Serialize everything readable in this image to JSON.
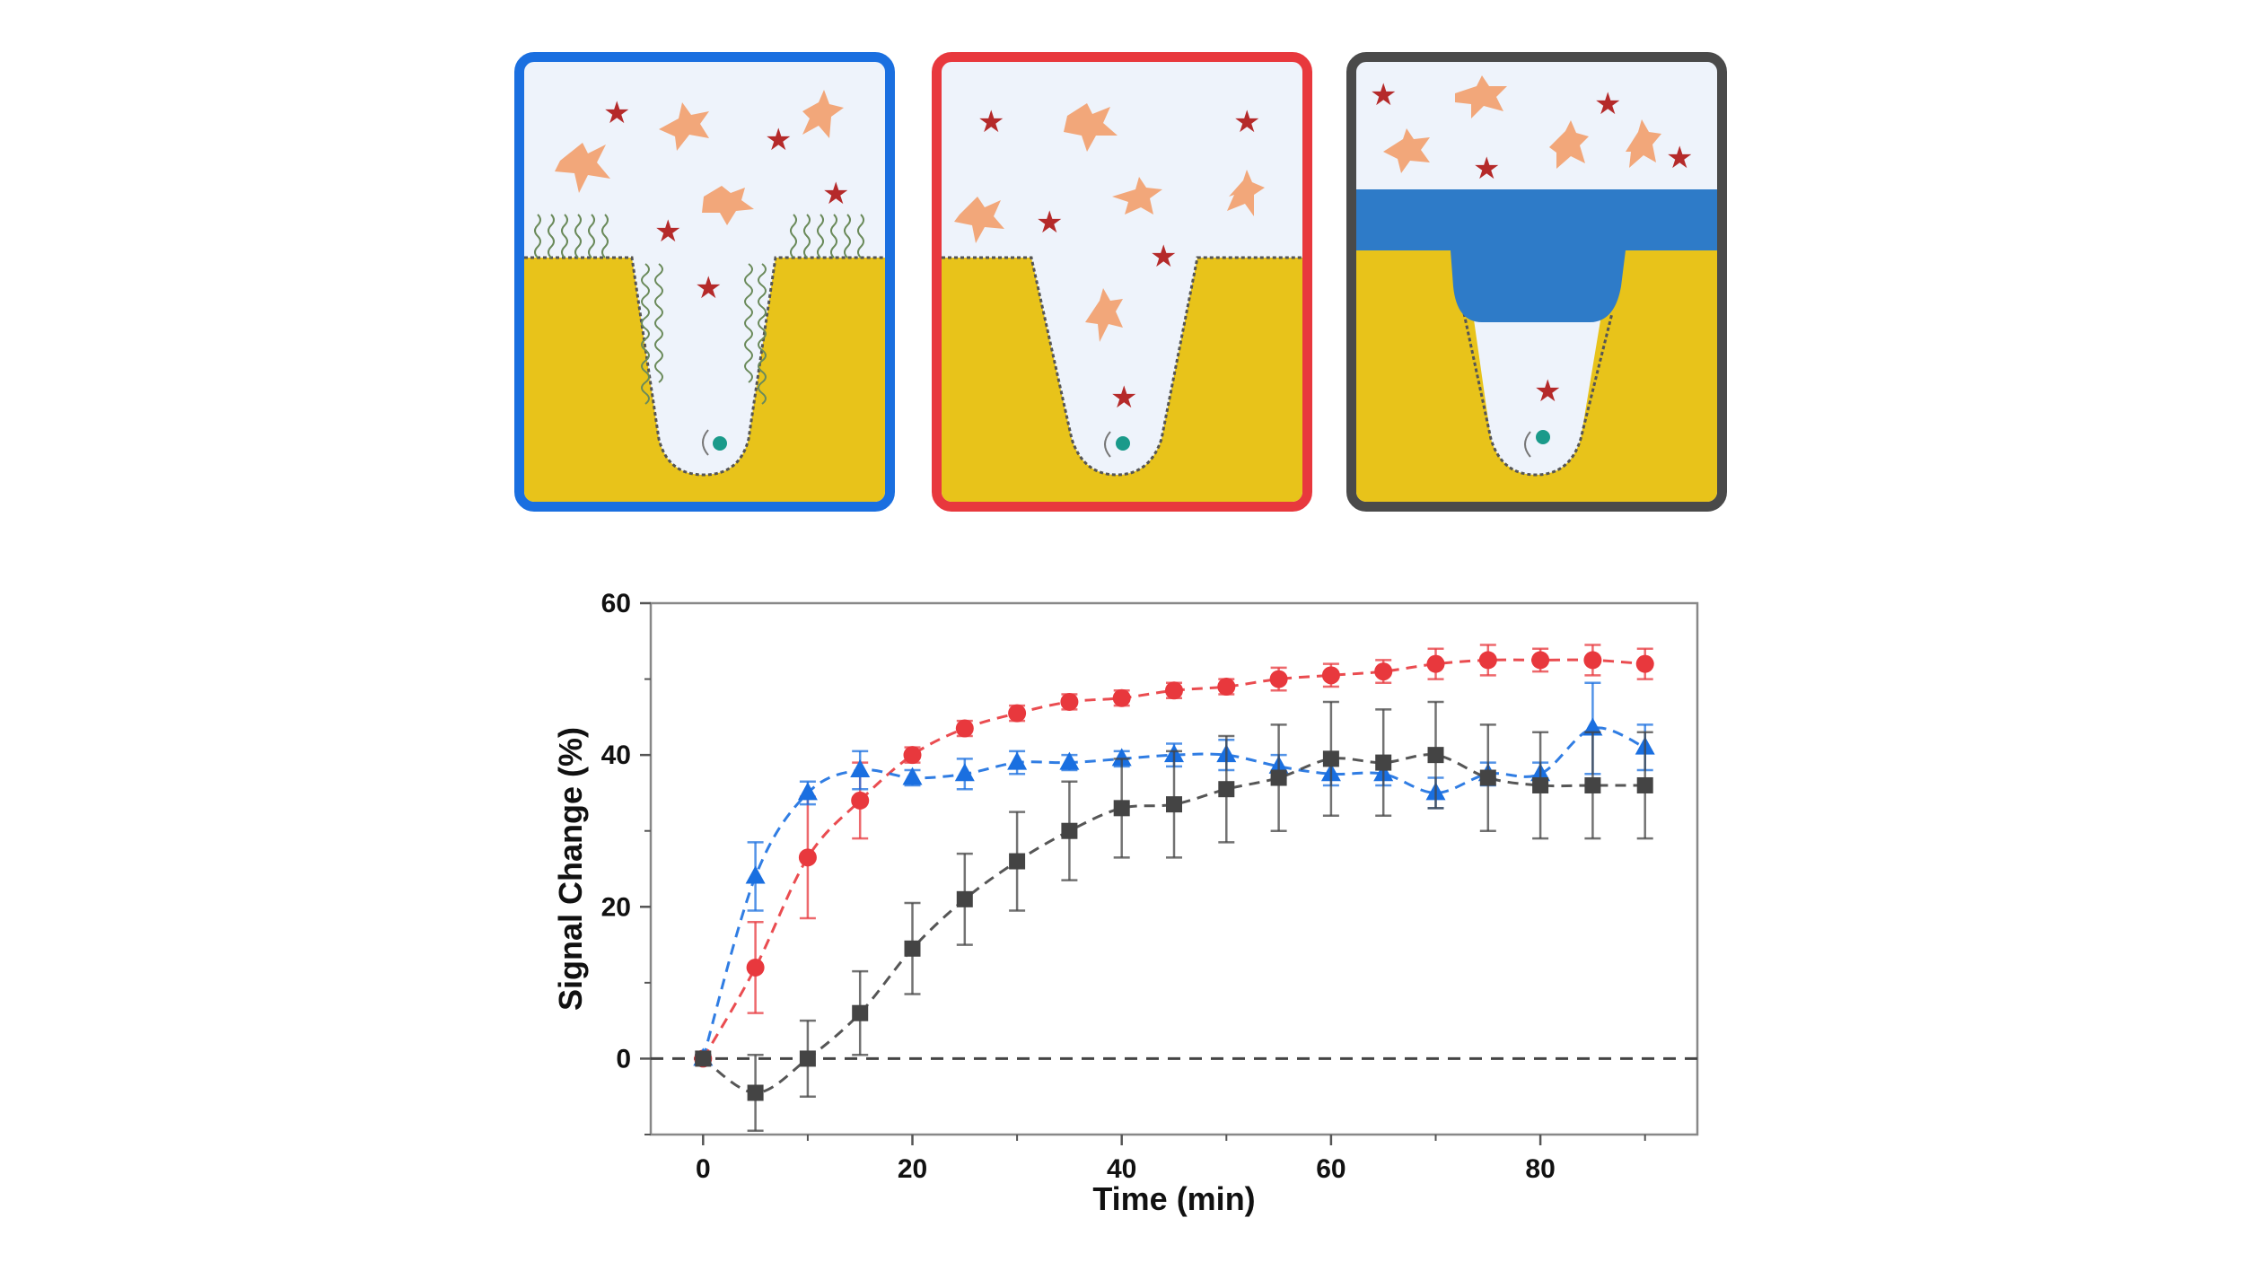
{
  "panels": [
    {
      "name": "panel-blue",
      "border_color": "#1a6fe0"
    },
    {
      "name": "panel-red",
      "border_color": "#e8383d"
    },
    {
      "name": "panel-gray",
      "border_color": "#4a4a4a"
    }
  ],
  "chart_data": {
    "type": "scatter",
    "xlabel": "Time (min)",
    "ylabel": "Signal Change (%)",
    "xlim": [
      -5,
      95
    ],
    "ylim": [
      -10,
      60
    ],
    "xticks": [
      0,
      20,
      40,
      60,
      80
    ],
    "yticks": [
      0,
      20,
      40,
      60
    ],
    "reference_line": {
      "y": 0,
      "style": "dashed"
    },
    "grid": false,
    "legend": "none",
    "series": [
      {
        "color": "#e8383d",
        "marker": "circle",
        "line": "dashed",
        "x": [
          0,
          5,
          10,
          15,
          20,
          25,
          30,
          35,
          40,
          45,
          50,
          55,
          60,
          65,
          70,
          75,
          80,
          85,
          90
        ],
        "y": [
          0,
          12,
          26.5,
          34,
          40,
          43.5,
          45.5,
          47,
          47.5,
          48.5,
          49,
          50,
          50.5,
          51,
          52,
          52.5,
          52.5,
          52.5,
          52
        ],
        "err": [
          0.5,
          6,
          8,
          5,
          1,
          1,
          1,
          1,
          1,
          1,
          1,
          1.5,
          1.5,
          1.5,
          2,
          2,
          1.5,
          2,
          2
        ]
      },
      {
        "color": "#1a6fe0",
        "marker": "triangle",
        "line": "dashed",
        "x": [
          0,
          5,
          10,
          15,
          20,
          25,
          30,
          35,
          40,
          45,
          50,
          55,
          60,
          65,
          70,
          75,
          80,
          85,
          90
        ],
        "y": [
          0,
          24,
          35,
          38,
          37,
          37.5,
          39,
          39,
          39.5,
          40,
          40,
          38.5,
          37.5,
          37.5,
          35,
          37.5,
          37.5,
          43.5,
          41
        ],
        "err": [
          0.5,
          4.5,
          1.5,
          2.5,
          1,
          2,
          1.5,
          1,
          1,
          1.5,
          2,
          1.5,
          1.5,
          1.5,
          2,
          1.5,
          1.5,
          6,
          3
        ]
      },
      {
        "color": "#444444",
        "marker": "square",
        "line": "dashed",
        "x": [
          0,
          5,
          10,
          15,
          20,
          25,
          30,
          35,
          40,
          45,
          50,
          55,
          60,
          65,
          70,
          75,
          80,
          85,
          90
        ],
        "y": [
          0,
          -4.5,
          0,
          6,
          14.5,
          21,
          26,
          30,
          33,
          33.5,
          35.5,
          37,
          39.5,
          39,
          40,
          37,
          36,
          36,
          36
        ],
        "err": [
          0.5,
          5,
          5,
          5.5,
          6,
          6,
          6.5,
          6.5,
          6.5,
          7,
          7,
          7,
          7.5,
          7,
          7,
          7,
          7,
          7,
          7
        ]
      }
    ]
  }
}
